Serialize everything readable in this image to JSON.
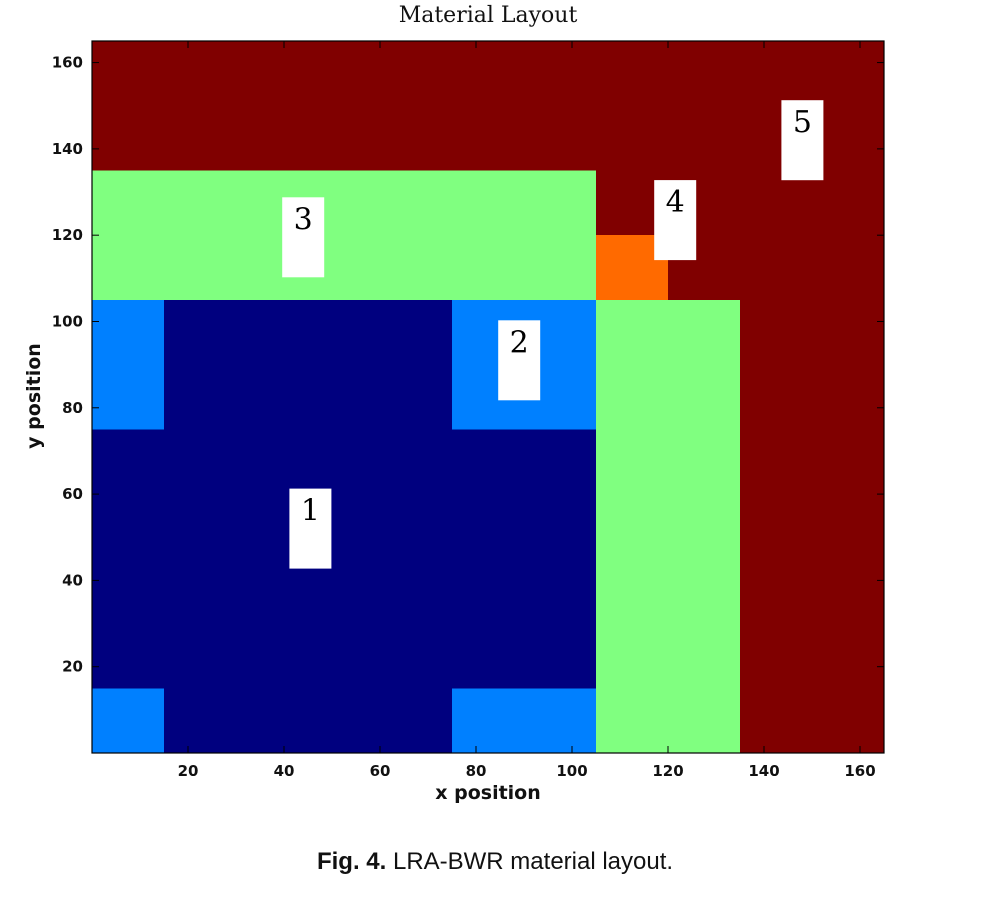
{
  "chart_data": {
    "type": "heatmap",
    "title": "Material Layout",
    "xlabel": "x position",
    "ylabel": "y position",
    "xlim": [
      0,
      165
    ],
    "ylim": [
      0,
      165
    ],
    "xticks": [
      20,
      40,
      60,
      80,
      100,
      120,
      140,
      160
    ],
    "yticks": [
      20,
      40,
      60,
      80,
      100,
      120,
      140,
      160
    ],
    "grid": false,
    "colors": {
      "1": "#00007f",
      "2": "#0080ff",
      "3": "#80ff80",
      "4": "#ff6a00",
      "5": "#800000"
    },
    "regions": [
      {
        "material": 5,
        "x": [
          0,
          165
        ],
        "y": [
          0,
          165
        ]
      },
      {
        "material": 3,
        "x": [
          0,
          105
        ],
        "y": [
          105,
          135
        ]
      },
      {
        "material": 3,
        "x": [
          105,
          135
        ],
        "y": [
          0,
          105
        ]
      },
      {
        "material": 4,
        "x": [
          105,
          120
        ],
        "y": [
          105,
          120
        ]
      },
      {
        "material": 1,
        "x": [
          0,
          105
        ],
        "y": [
          15,
          75
        ]
      },
      {
        "material": 1,
        "x": [
          15,
          75
        ],
        "y": [
          0,
          105
        ]
      },
      {
        "material": 2,
        "x": [
          0,
          15
        ],
        "y": [
          75,
          105
        ]
      },
      {
        "material": 2,
        "x": [
          75,
          105
        ],
        "y": [
          75,
          105
        ]
      },
      {
        "material": 2,
        "x": [
          0,
          15
        ],
        "y": [
          0,
          15
        ]
      },
      {
        "material": 2,
        "x": [
          75,
          105
        ],
        "y": [
          0,
          15
        ]
      }
    ],
    "annotations": [
      {
        "text": "1",
        "x": 45.5,
        "y": 52
      },
      {
        "text": "2",
        "x": 89,
        "y": 91
      },
      {
        "text": "3",
        "x": 44,
        "y": 119.5
      },
      {
        "text": "4",
        "x": 121.5,
        "y": 123.5
      },
      {
        "text": "5",
        "x": 148,
        "y": 142
      }
    ]
  },
  "caption": {
    "label": "Fig. 4.",
    "text": " LRA-BWR material layout."
  }
}
